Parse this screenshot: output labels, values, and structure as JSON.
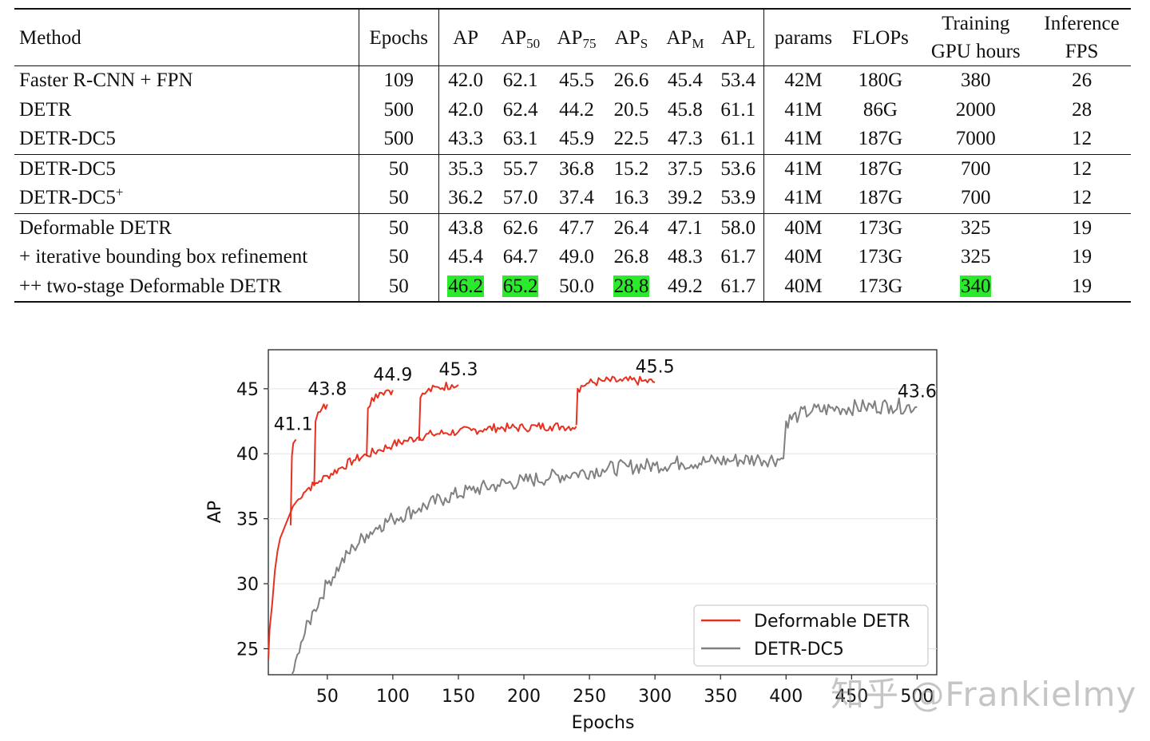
{
  "table": {
    "headers": {
      "method": "Method",
      "epochs": "Epochs",
      "ap": "AP",
      "ap50": [
        "AP",
        "50"
      ],
      "ap75": [
        "AP",
        "75"
      ],
      "aps": [
        "AP",
        "S"
      ],
      "apm": [
        "AP",
        "M"
      ],
      "apl": [
        "AP",
        "L"
      ],
      "params": "params",
      "flops": "FLOPs",
      "training": [
        "Training",
        "GPU hours"
      ],
      "inference": [
        "Inference",
        "FPS"
      ]
    },
    "groups": [
      [
        {
          "method": "Faster R-CNN + FPN",
          "sup": "",
          "epochs": "109",
          "ap": "42.0",
          "ap50": "62.1",
          "ap75": "45.5",
          "aps": "26.6",
          "apm": "45.4",
          "apl": "53.4",
          "params": "42M",
          "flops": "180G",
          "gpu": "380",
          "fps": "26"
        },
        {
          "method": "DETR",
          "sup": "",
          "epochs": "500",
          "ap": "42.0",
          "ap50": "62.4",
          "ap75": "44.2",
          "aps": "20.5",
          "apm": "45.8",
          "apl": "61.1",
          "params": "41M",
          "flops": "86G",
          "gpu": "2000",
          "fps": "28"
        },
        {
          "method": "DETR-DC5",
          "sup": "",
          "epochs": "500",
          "ap": "43.3",
          "ap50": "63.1",
          "ap75": "45.9",
          "aps": "22.5",
          "apm": "47.3",
          "apl": "61.1",
          "params": "41M",
          "flops": "187G",
          "gpu": "7000",
          "fps": "12"
        }
      ],
      [
        {
          "method": "DETR-DC5",
          "sup": "",
          "epochs": "50",
          "ap": "35.3",
          "ap50": "55.7",
          "ap75": "36.8",
          "aps": "15.2",
          "apm": "37.5",
          "apl": "53.6",
          "params": "41M",
          "flops": "187G",
          "gpu": "700",
          "fps": "12"
        },
        {
          "method": "DETR-DC5",
          "sup": "+",
          "epochs": "50",
          "ap": "36.2",
          "ap50": "57.0",
          "ap75": "37.4",
          "aps": "16.3",
          "apm": "39.2",
          "apl": "53.9",
          "params": "41M",
          "flops": "187G",
          "gpu": "700",
          "fps": "12"
        }
      ],
      [
        {
          "method": "Deformable DETR",
          "sup": "",
          "epochs": "50",
          "ap": "43.8",
          "ap50": "62.6",
          "ap75": "47.7",
          "aps": "26.4",
          "apm": "47.1",
          "apl": "58.0",
          "params": "40M",
          "flops": "173G",
          "gpu": "325",
          "fps": "19"
        },
        {
          "method": "+ iterative bounding box refinement",
          "sup": "",
          "epochs": "50",
          "ap": "45.4",
          "ap50": "64.7",
          "ap75": "49.0",
          "aps": "26.8",
          "apm": "48.3",
          "apl": "61.7",
          "params": "40M",
          "flops": "173G",
          "gpu": "325",
          "fps": "19"
        },
        {
          "method": "++ two-stage Deformable DETR",
          "sup": "",
          "epochs": "50",
          "ap": "46.2",
          "ap50": "65.2",
          "ap75": "50.0",
          "aps": "28.8",
          "apm": "49.2",
          "apl": "61.7",
          "params": "40M",
          "flops": "173G",
          "gpu": "340",
          "fps": "19",
          "highlight": [
            "ap",
            "ap50",
            "aps",
            "gpu"
          ]
        }
      ]
    ]
  },
  "chart_data": {
    "type": "line",
    "xlabel": "Epochs",
    "ylabel": "AP",
    "xlim": [
      5,
      515
    ],
    "ylim": [
      23,
      48
    ],
    "xticks": [
      50,
      100,
      150,
      200,
      250,
      300,
      350,
      400,
      450,
      500
    ],
    "yticks": [
      25,
      30,
      35,
      40,
      45
    ],
    "grid": "horizontal",
    "legend_position": "bottom-right",
    "series": [
      {
        "name": "Deformable DETR",
        "color": "#e8301e"
      },
      {
        "name": "DETR-DC5",
        "color": "#808080"
      }
    ],
    "annotations": [
      {
        "text": "41.1",
        "x": 24,
        "y": 41.1
      },
      {
        "text": "43.8",
        "x": 50,
        "y": 43.8
      },
      {
        "text": "44.9",
        "x": 100,
        "y": 44.9
      },
      {
        "text": "45.3",
        "x": 150,
        "y": 45.3
      },
      {
        "text": "45.5",
        "x": 300,
        "y": 45.5
      },
      {
        "text": "43.6",
        "x": 500,
        "y": 43.6
      }
    ],
    "segments": [
      {
        "series": 0,
        "points": [
          [
            5,
            24.2
          ],
          [
            6,
            26.5
          ],
          [
            8,
            28.5
          ],
          [
            10,
            31
          ],
          [
            12,
            32.5
          ],
          [
            14,
            33.5
          ],
          [
            16,
            34
          ],
          [
            18,
            34.5
          ],
          [
            20,
            35
          ],
          [
            22,
            35.5
          ],
          [
            24,
            36
          ]
        ]
      },
      {
        "series": 0,
        "points": [
          [
            22,
            34.5
          ],
          [
            23,
            39.8
          ],
          [
            24,
            40.8
          ],
          [
            26,
            41.1
          ]
        ]
      },
      {
        "series": 0,
        "points": [
          [
            24,
            36
          ],
          [
            28,
            36.5
          ],
          [
            32,
            37
          ],
          [
            36,
            37.4
          ],
          [
            40,
            37.6
          ],
          [
            44,
            37.9
          ],
          [
            50,
            38.3
          ],
          [
            60,
            38.9
          ],
          [
            70,
            39.5
          ],
          [
            80,
            39.9
          ],
          [
            90,
            40.3
          ],
          [
            100,
            40.7
          ],
          [
            110,
            41
          ],
          [
            120,
            41.3
          ],
          [
            130,
            41.5
          ],
          [
            140,
            41.6
          ],
          [
            150,
            41.7
          ],
          [
            160,
            41.8
          ],
          [
            170,
            41.9
          ],
          [
            180,
            42
          ],
          [
            190,
            42
          ],
          [
            200,
            42
          ],
          [
            210,
            42.1
          ],
          [
            220,
            42.1
          ],
          [
            230,
            42.1
          ],
          [
            240,
            42.1
          ]
        ]
      },
      {
        "series": 0,
        "points": [
          [
            40,
            37.5
          ],
          [
            41,
            42.5
          ],
          [
            43,
            43.2
          ],
          [
            46,
            43.5
          ],
          [
            50,
            43.8
          ]
        ]
      },
      {
        "series": 0,
        "points": [
          [
            80,
            39.8
          ],
          [
            81,
            43.5
          ],
          [
            84,
            44.3
          ],
          [
            90,
            44.7
          ],
          [
            96,
            44.9
          ],
          [
            100,
            44.9
          ]
        ]
      },
      {
        "series": 0,
        "points": [
          [
            120,
            41
          ],
          [
            121,
            44.3
          ],
          [
            126,
            44.8
          ],
          [
            135,
            45.1
          ],
          [
            145,
            45.3
          ],
          [
            150,
            45.3
          ]
        ]
      },
      {
        "series": 0,
        "points": [
          [
            240,
            42.2
          ],
          [
            241,
            45
          ],
          [
            248,
            45.4
          ],
          [
            260,
            45.6
          ],
          [
            275,
            45.6
          ],
          [
            290,
            45.6
          ],
          [
            300,
            45.5
          ]
        ]
      },
      {
        "series": 1,
        "points": [
          [
            23,
            22.8
          ],
          [
            30,
            25.5
          ],
          [
            40,
            28
          ],
          [
            50,
            30
          ],
          [
            60,
            31.5
          ],
          [
            70,
            32.8
          ],
          [
            80,
            33.8
          ],
          [
            90,
            34.5
          ],
          [
            100,
            35
          ],
          [
            120,
            35.8
          ],
          [
            140,
            36.6
          ],
          [
            160,
            37.2
          ],
          [
            180,
            37.6
          ],
          [
            200,
            37.9
          ],
          [
            220,
            38.2
          ],
          [
            240,
            38.5
          ],
          [
            260,
            38.8
          ],
          [
            280,
            39
          ],
          [
            300,
            39.1
          ],
          [
            320,
            39.3
          ],
          [
            340,
            39.4
          ],
          [
            360,
            39.5
          ],
          [
            380,
            39.6
          ],
          [
            398,
            39.6
          ]
        ]
      },
      {
        "series": 1,
        "points": [
          [
            398,
            39.6
          ],
          [
            400,
            42.5
          ],
          [
            410,
            43
          ],
          [
            420,
            43.3
          ],
          [
            440,
            43.5
          ],
          [
            460,
            43.6
          ],
          [
            480,
            43.7
          ],
          [
            500,
            43.6
          ]
        ]
      }
    ]
  },
  "watermark": "知乎 @Frankielmy"
}
